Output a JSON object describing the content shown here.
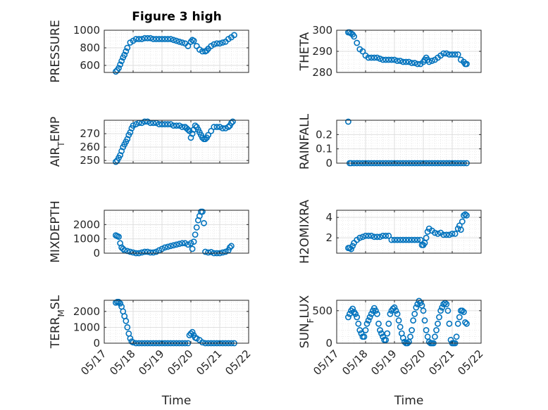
{
  "figure_title": "Figure 3 high",
  "colors": {
    "marker": "#0072bd",
    "grid": "#dcdcdc",
    "axis": "#262626"
  },
  "chart_data": [
    {
      "type": "scatter",
      "ylabel": "PRESSURE",
      "ylim": [
        520,
        1000
      ],
      "yticks": [
        600,
        800,
        1000
      ],
      "xlim": [
        0,
        5
      ],
      "x": [
        0.4,
        0.45,
        0.5,
        0.55,
        0.6,
        0.65,
        0.7,
        0.75,
        0.8,
        0.9,
        1.0,
        1.1,
        1.2,
        1.3,
        1.4,
        1.5,
        1.6,
        1.7,
        1.8,
        1.9,
        2.0,
        2.1,
        2.2,
        2.3,
        2.4,
        2.5,
        2.6,
        2.7,
        2.8,
        2.9,
        3.0,
        3.05,
        3.1,
        3.2,
        3.3,
        3.4,
        3.5,
        3.55,
        3.6,
        3.7,
        3.8,
        3.9,
        4.0,
        4.1,
        4.2,
        4.3,
        4.4,
        4.5
      ],
      "y": [
        530,
        545,
        570,
        610,
        650,
        690,
        720,
        760,
        800,
        860,
        880,
        900,
        900,
        900,
        910,
        910,
        910,
        900,
        900,
        900,
        900,
        900,
        900,
        900,
        890,
        880,
        870,
        860,
        850,
        820,
        870,
        890,
        880,
        820,
        780,
        760,
        760,
        770,
        790,
        820,
        840,
        850,
        850,
        860,
        870,
        900,
        920,
        945
      ]
    },
    {
      "type": "scatter",
      "ylabel": "THETA",
      "ylim": [
        280,
        300
      ],
      "yticks": [
        280,
        290,
        300
      ],
      "xlim": [
        0,
        5
      ],
      "x": [
        0.4,
        0.45,
        0.5,
        0.55,
        0.6,
        0.7,
        0.8,
        0.9,
        1.0,
        1.1,
        1.2,
        1.3,
        1.4,
        1.5,
        1.6,
        1.7,
        1.8,
        1.9,
        2.0,
        2.1,
        2.2,
        2.3,
        2.4,
        2.5,
        2.6,
        2.7,
        2.8,
        2.9,
        3.0,
        3.05,
        3.1,
        3.15,
        3.2,
        3.3,
        3.4,
        3.5,
        3.6,
        3.7,
        3.8,
        3.9,
        4.0,
        4.1,
        4.2,
        4.3,
        4.4,
        4.45,
        4.5
      ],
      "y": [
        299,
        299,
        298.5,
        298,
        297,
        294,
        291,
        290,
        288,
        287,
        287,
        287,
        287,
        286.5,
        286,
        286,
        286,
        286,
        286,
        285.5,
        285.5,
        285,
        285,
        285,
        284.5,
        284.5,
        284,
        284,
        285,
        286,
        287,
        286,
        285,
        285.5,
        286,
        287,
        288,
        289,
        289,
        288.5,
        288.5,
        288.5,
        288.5,
        286,
        285,
        284,
        284
      ]
    },
    {
      "type": "scatter",
      "ylabel": "AIR_TEMP",
      "ylim": [
        248,
        280
      ],
      "yticks": [
        250,
        260,
        270
      ],
      "xlim": [
        0,
        5
      ],
      "x": [
        0.4,
        0.45,
        0.5,
        0.55,
        0.6,
        0.65,
        0.7,
        0.75,
        0.8,
        0.85,
        0.9,
        0.95,
        1.0,
        1.1,
        1.2,
        1.3,
        1.4,
        1.5,
        1.6,
        1.7,
        1.8,
        1.9,
        2.0,
        2.1,
        2.2,
        2.3,
        2.4,
        2.5,
        2.6,
        2.7,
        2.8,
        2.85,
        2.9,
        2.95,
        3.0,
        3.05,
        3.1,
        3.15,
        3.2,
        3.25,
        3.3,
        3.35,
        3.4,
        3.45,
        3.5,
        3.55,
        3.6,
        3.7,
        3.8,
        3.9,
        4.0,
        4.1,
        4.2,
        4.3,
        4.35,
        4.4,
        4.45
      ],
      "y": [
        249,
        250,
        252,
        254,
        257,
        260,
        262,
        264,
        266,
        269,
        271,
        274,
        276,
        277,
        278,
        278,
        279,
        279,
        278,
        278,
        278,
        277,
        277,
        277,
        277,
        277,
        276,
        276,
        276,
        275,
        275,
        274,
        273,
        272,
        267,
        270,
        273,
        276,
        275,
        273,
        271,
        269,
        267,
        266,
        266,
        267,
        269,
        272,
        275,
        275,
        275,
        274,
        274,
        275,
        276,
        278,
        279
      ]
    },
    {
      "type": "scatter",
      "ylabel": "RAINFALL",
      "ylim": [
        0,
        0.3
      ],
      "yticks": [
        0,
        0.1,
        0.2
      ],
      "xlim": [
        0,
        5
      ],
      "x": [
        0.4,
        0.45,
        0.5,
        0.6,
        0.7,
        0.8,
        0.9,
        1.0,
        1.1,
        1.2,
        1.3,
        1.4,
        1.5,
        1.6,
        1.7,
        1.8,
        1.9,
        2.0,
        2.1,
        2.2,
        2.3,
        2.4,
        2.5,
        2.6,
        2.7,
        2.8,
        2.9,
        3.0,
        3.1,
        3.2,
        3.3,
        3.4,
        3.5,
        3.6,
        3.7,
        3.8,
        3.9,
        4.0,
        4.1,
        4.2,
        4.3,
        4.4,
        4.5
      ],
      "y": [
        0.29,
        0,
        0,
        0,
        0,
        0,
        0,
        0,
        0,
        0,
        0,
        0,
        0,
        0,
        0,
        0,
        0,
        0,
        0,
        0,
        0,
        0,
        0,
        0,
        0,
        0,
        0,
        0,
        0,
        0,
        0,
        0,
        0,
        0,
        0,
        0,
        0,
        0,
        0,
        0,
        0,
        0,
        0
      ]
    },
    {
      "type": "scatter",
      "ylabel": "MIXDEPTH",
      "ylim": [
        0,
        3000
      ],
      "yticks": [
        0,
        1000,
        2000
      ],
      "xlim": [
        0,
        5
      ],
      "x": [
        0.4,
        0.45,
        0.5,
        0.55,
        0.6,
        0.65,
        0.7,
        0.8,
        0.9,
        1.0,
        1.1,
        1.2,
        1.3,
        1.4,
        1.5,
        1.6,
        1.7,
        1.8,
        1.9,
        2.0,
        2.1,
        2.2,
        2.3,
        2.4,
        2.5,
        2.6,
        2.7,
        2.8,
        2.9,
        3.0,
        3.05,
        3.1,
        3.15,
        3.2,
        3.25,
        3.3,
        3.35,
        3.4,
        3.45,
        3.5,
        3.6,
        3.7,
        3.8,
        3.9,
        4.0,
        4.1,
        4.2,
        4.3,
        4.35,
        4.4
      ],
      "y": [
        1250,
        1200,
        1150,
        700,
        400,
        300,
        200,
        150,
        100,
        50,
        0,
        0,
        50,
        100,
        100,
        50,
        50,
        100,
        200,
        300,
        400,
        450,
        500,
        550,
        600,
        650,
        700,
        700,
        600,
        700,
        300,
        800,
        1300,
        1800,
        2300,
        2600,
        2900,
        2900,
        2100,
        100,
        50,
        80,
        0,
        0,
        0,
        50,
        100,
        200,
        400,
        500
      ]
    },
    {
      "type": "scatter",
      "ylabel": "H2OMIXRA",
      "ylim": [
        0.5,
        4.7
      ],
      "yticks": [
        2,
        4
      ],
      "xlim": [
        0,
        5
      ],
      "x": [
        0.4,
        0.45,
        0.5,
        0.55,
        0.6,
        0.7,
        0.8,
        0.9,
        1.0,
        1.1,
        1.2,
        1.3,
        1.4,
        1.5,
        1.6,
        1.7,
        1.8,
        1.9,
        2.0,
        2.1,
        2.2,
        2.3,
        2.4,
        2.5,
        2.6,
        2.7,
        2.8,
        2.9,
        2.95,
        3.0,
        3.05,
        3.1,
        3.15,
        3.2,
        3.3,
        3.4,
        3.5,
        3.6,
        3.7,
        3.8,
        3.9,
        4.0,
        4.1,
        4.2,
        4.25,
        4.3,
        4.35,
        4.4,
        4.45,
        4.5
      ],
      "y": [
        1.0,
        1.0,
        0.9,
        1.2,
        1.5,
        1.8,
        2.0,
        2.1,
        2.2,
        2.2,
        2.2,
        2.1,
        2.1,
        2.1,
        2.2,
        2.2,
        2.2,
        1.8,
        1.8,
        1.8,
        1.8,
        1.8,
        1.8,
        1.8,
        1.8,
        1.8,
        1.8,
        1.8,
        1.3,
        1.3,
        1.5,
        2.0,
        2.6,
        2.9,
        2.7,
        2.5,
        2.4,
        2.5,
        2.3,
        2.3,
        2.3,
        2.4,
        2.4,
        2.9,
        3.2,
        2.8,
        3.6,
        4.2,
        4.3,
        4.2
      ]
    },
    {
      "type": "scatter",
      "ylabel": "TERR_MSL",
      "ylim": [
        0,
        2700
      ],
      "yticks": [
        0,
        1000,
        2000
      ],
      "xlim": [
        0,
        5
      ],
      "x": [
        0.4,
        0.45,
        0.5,
        0.55,
        0.6,
        0.65,
        0.7,
        0.75,
        0.8,
        0.85,
        0.9,
        0.95,
        1.0,
        1.1,
        1.2,
        1.3,
        1.4,
        1.5,
        1.6,
        1.7,
        1.8,
        1.9,
        2.0,
        2.1,
        2.2,
        2.3,
        2.4,
        2.5,
        2.6,
        2.7,
        2.8,
        2.9,
        2.95,
        3.0,
        3.05,
        3.1,
        3.15,
        3.2,
        3.3,
        3.4,
        3.5,
        3.6,
        3.7,
        3.8,
        3.9,
        4.0,
        4.1,
        4.2,
        4.3,
        4.4,
        4.5
      ],
      "y": [
        2550,
        2600,
        2600,
        2500,
        2300,
        2000,
        1700,
        1400,
        1000,
        600,
        300,
        100,
        50,
        0,
        0,
        0,
        0,
        0,
        0,
        0,
        0,
        0,
        0,
        0,
        0,
        0,
        0,
        0,
        0,
        0,
        0,
        0,
        500,
        600,
        700,
        500,
        350,
        300,
        200,
        50,
        0,
        0,
        0,
        0,
        0,
        0,
        0,
        0,
        0,
        0,
        0
      ]
    },
    {
      "type": "scatter",
      "ylabel": "SUN_FLUX",
      "ylim": [
        0,
        660
      ],
      "yticks": [
        0,
        500
      ],
      "xlim": [
        0,
        5
      ],
      "x": [
        0.4,
        0.45,
        0.5,
        0.55,
        0.6,
        0.65,
        0.7,
        0.75,
        0.8,
        0.85,
        0.9,
        0.95,
        1.0,
        1.05,
        1.1,
        1.15,
        1.2,
        1.25,
        1.3,
        1.35,
        1.4,
        1.45,
        1.5,
        1.55,
        1.6,
        1.65,
        1.7,
        1.75,
        1.8,
        1.85,
        1.9,
        1.95,
        2.0,
        2.05,
        2.1,
        2.15,
        2.2,
        2.25,
        2.3,
        2.35,
        2.4,
        2.45,
        2.5,
        2.55,
        2.6,
        2.65,
        2.7,
        2.75,
        2.8,
        2.85,
        2.9,
        2.95,
        3.0,
        3.05,
        3.1,
        3.15,
        3.2,
        3.25,
        3.3,
        3.35,
        3.4,
        3.45,
        3.5,
        3.55,
        3.6,
        3.65,
        3.7,
        3.75,
        3.8,
        3.85,
        3.9,
        3.95,
        4.0,
        4.05,
        4.1,
        4.15,
        4.2,
        4.25,
        4.3,
        4.35,
        4.4,
        4.45,
        4.5
      ],
      "y": [
        400,
        450,
        500,
        530,
        480,
        450,
        400,
        300,
        200,
        150,
        100,
        100,
        200,
        300,
        350,
        400,
        450,
        500,
        540,
        500,
        450,
        300,
        200,
        150,
        100,
        50,
        50,
        150,
        300,
        450,
        500,
        530,
        550,
        500,
        450,
        350,
        250,
        150,
        80,
        20,
        0,
        0,
        20,
        100,
        200,
        350,
        450,
        550,
        600,
        650,
        620,
        580,
        500,
        350,
        200,
        100,
        20,
        0,
        0,
        0,
        100,
        200,
        300,
        400,
        500,
        550,
        600,
        620,
        600,
        500,
        300,
        50,
        0,
        0,
        0,
        100,
        300,
        400,
        500,
        500,
        480,
        320,
        300
      ]
    },
    {
      "type": "axis-labels",
      "xticks": [
        "05/17",
        "05/18",
        "05/19",
        "05/20",
        "05/21",
        "05/22"
      ],
      "xlabel": "Time"
    }
  ]
}
